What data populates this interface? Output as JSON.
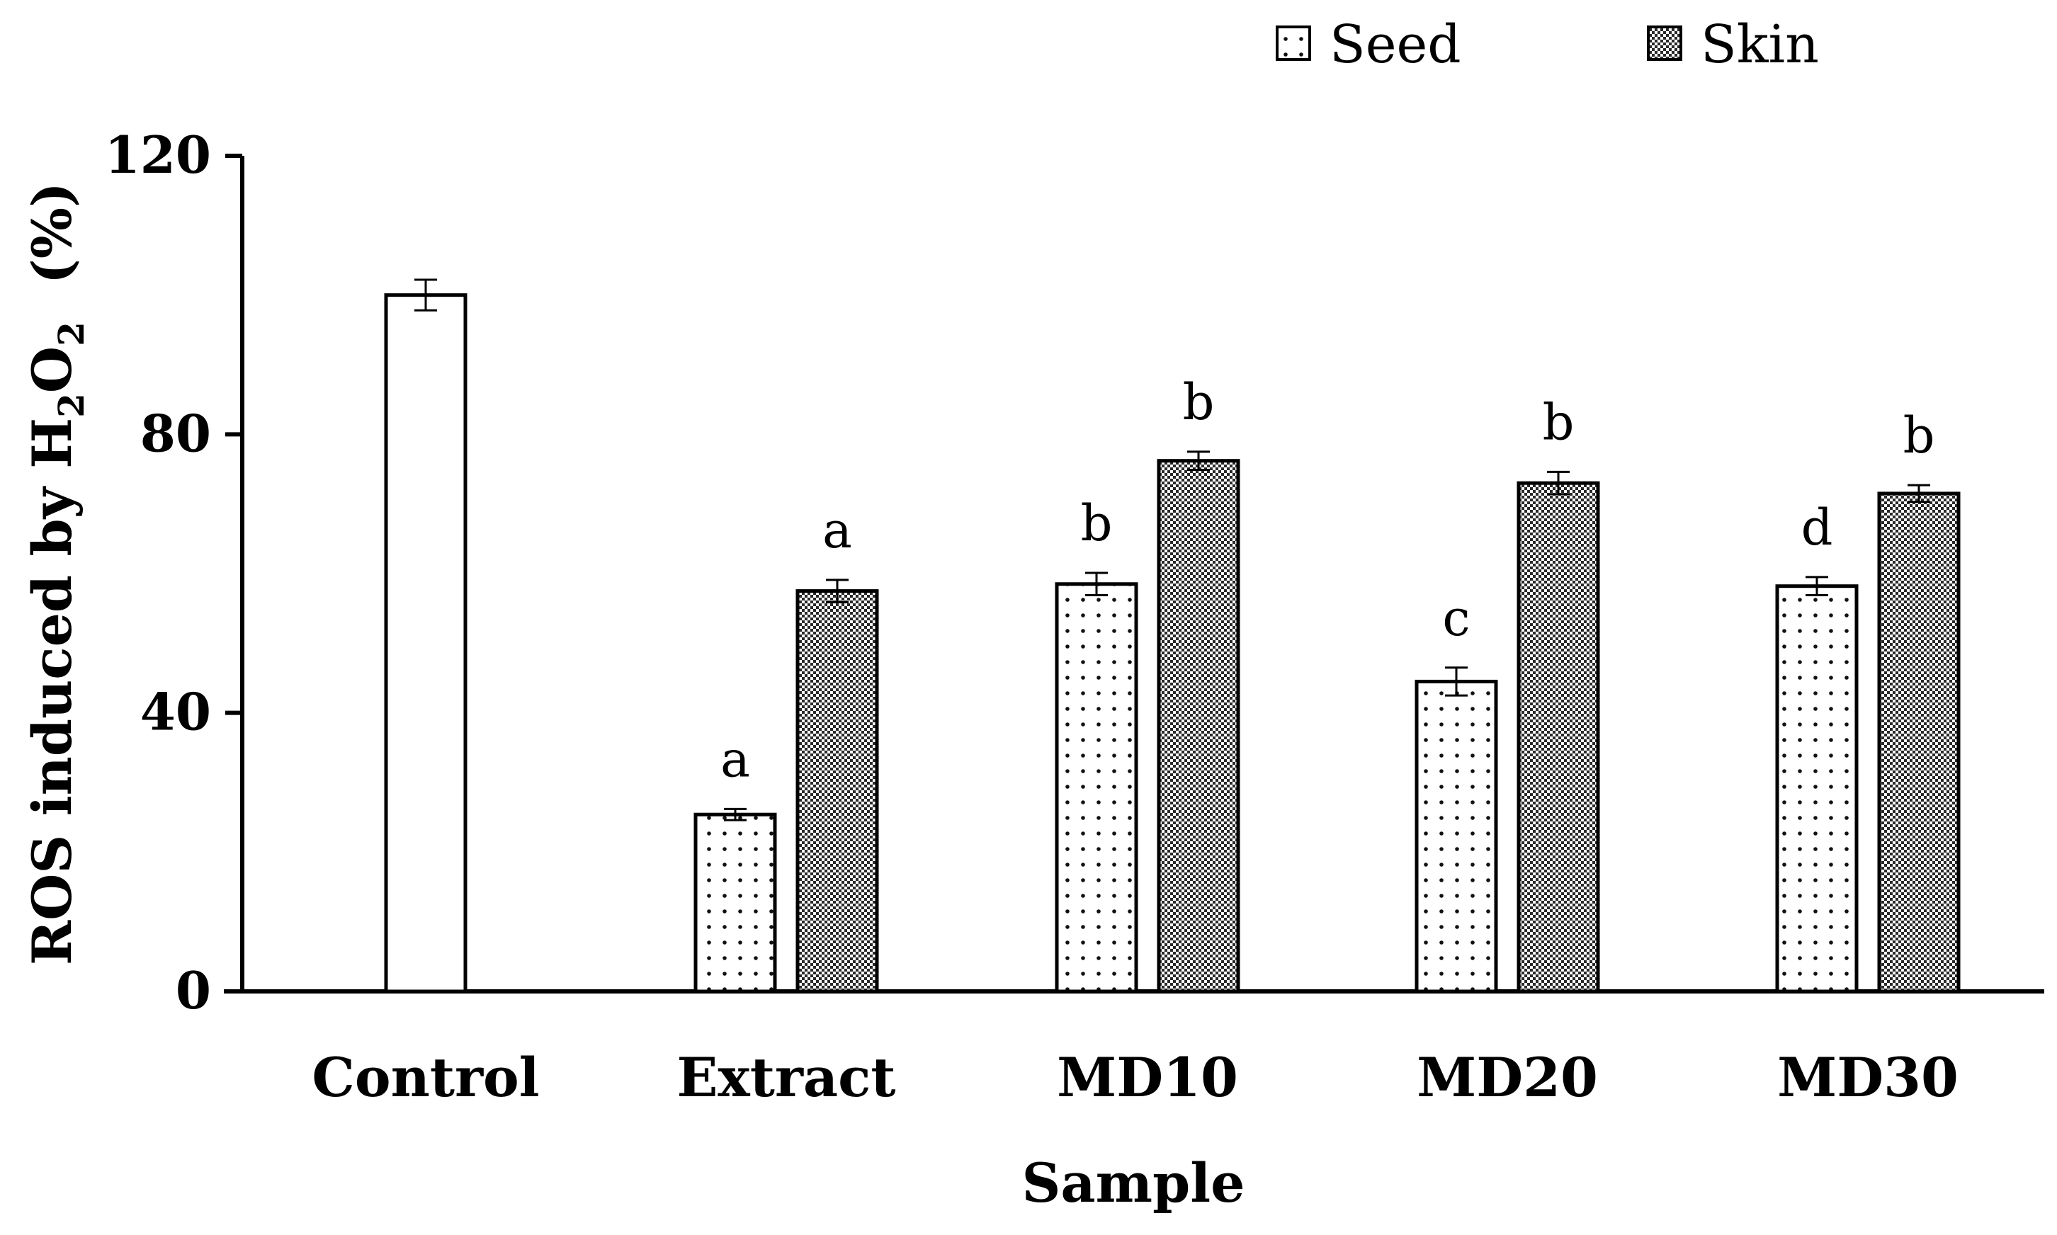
{
  "chart_data": {
    "type": "bar",
    "xlabel": "Sample",
    "ylabel": {
      "prefix": "ROS induced by H",
      "sub1": "2",
      "mid": "O",
      "sub2": "2",
      "suffix": "  (%)"
    },
    "ylim": [
      0,
      120
    ],
    "yticks": [
      0,
      40,
      80,
      120
    ],
    "legend_position": "top-right",
    "categories": [
      "Control",
      "Extract",
      "MD10",
      "MD20",
      "MD30"
    ],
    "series": [
      {
        "name": "Seed",
        "pattern": "dots",
        "values": [
          null,
          25.4,
          58.5,
          44.5,
          58.2
        ],
        "errors": [
          null,
          0.8,
          1.6,
          2.0,
          1.3
        ],
        "letters": [
          null,
          "a",
          "b",
          "c",
          "d"
        ]
      },
      {
        "name": "Skin",
        "pattern": "checker",
        "values": [
          null,
          57.5,
          76.2,
          73.0,
          71.5
        ],
        "errors": [
          null,
          1.6,
          1.3,
          1.6,
          1.2
        ],
        "letters": [
          null,
          "a",
          "b",
          "b",
          "b"
        ]
      }
    ],
    "control": {
      "value": 100,
      "error": 2.2
    }
  }
}
